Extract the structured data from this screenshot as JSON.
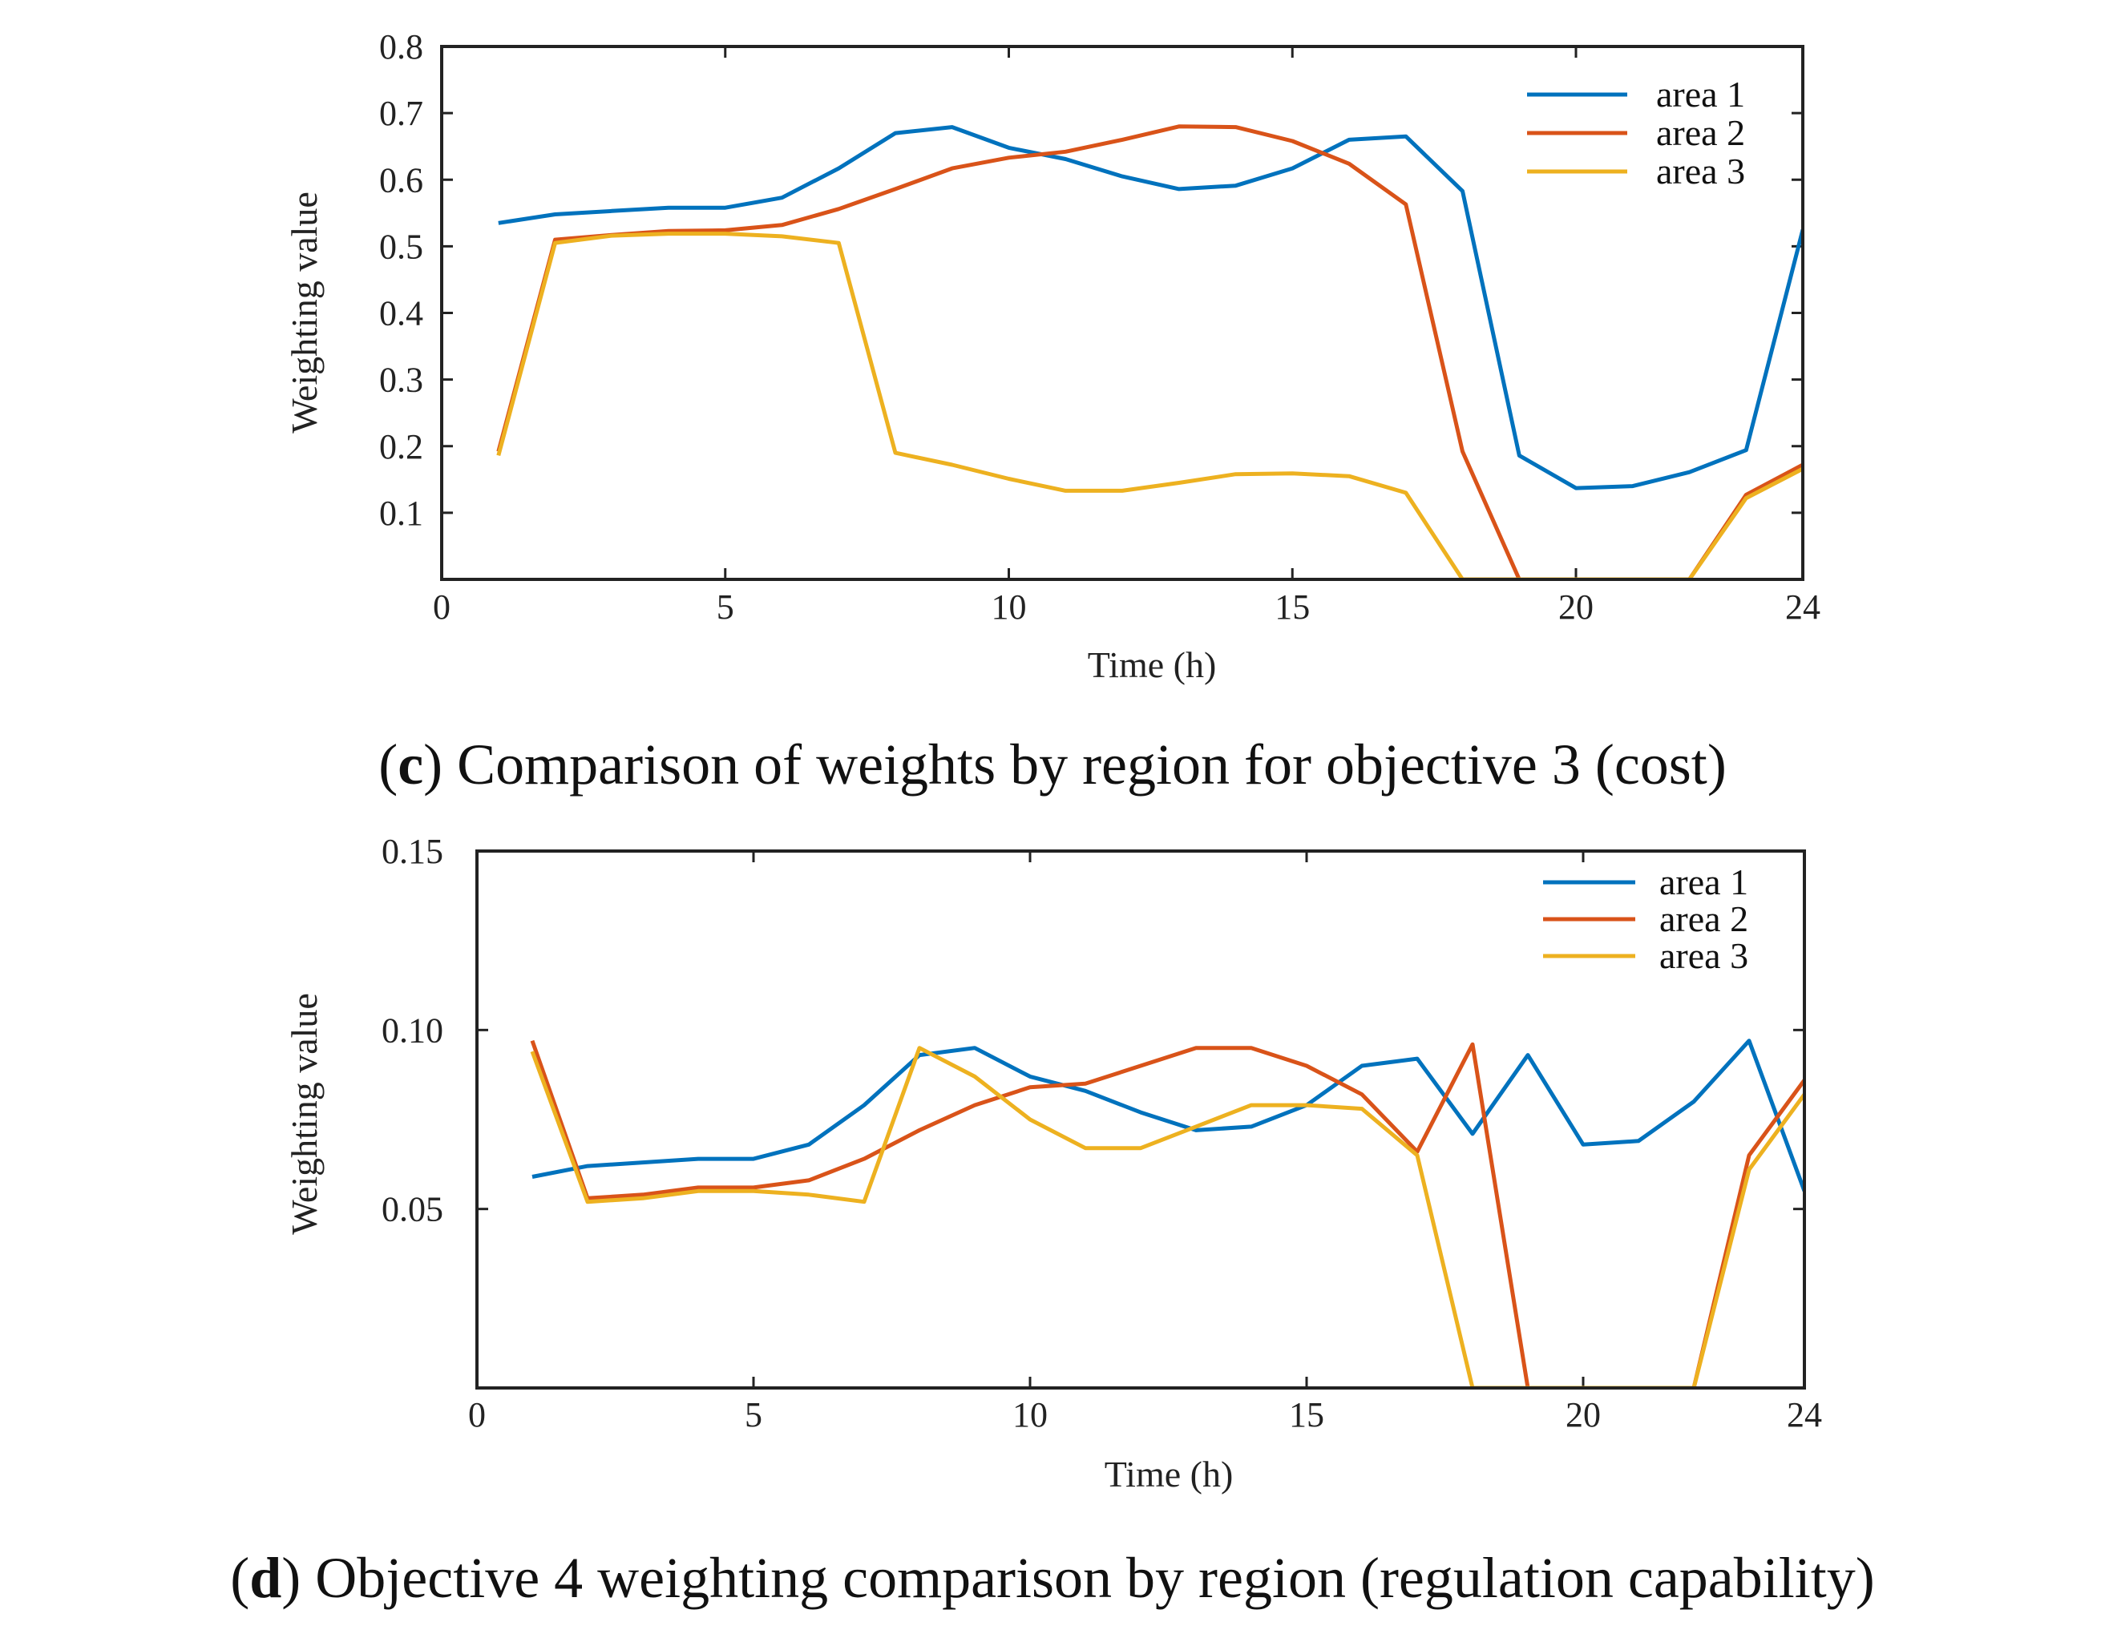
{
  "chart_data": [
    {
      "type": "line",
      "title": "",
      "caption_letter": "c",
      "caption_text": "Comparison of weights by region for objective 3 (cost)",
      "xlabel": "Time (h)",
      "ylabel": "Weighting value",
      "xlim": [
        0,
        24
      ],
      "ylim": [
        0,
        0.8
      ],
      "xticks": [
        0,
        5,
        10,
        15,
        20,
        24
      ],
      "xtick_labels": [
        "0",
        "5",
        "10",
        "15",
        "20",
        "24"
      ],
      "yticks": [
        0.1,
        0.2,
        0.3,
        0.4,
        0.5,
        0.6,
        0.7,
        0.8
      ],
      "ytick_labels": [
        "0.1",
        "0.2",
        "0.3",
        "0.4",
        "0.5",
        "0.6",
        "0.7",
        "0.8"
      ],
      "grid": false,
      "legend_position": "top-right",
      "x": [
        1,
        2,
        3,
        4,
        5,
        6,
        7,
        8,
        9,
        10,
        11,
        12,
        13,
        14,
        15,
        16,
        17,
        18,
        19,
        20,
        21,
        22,
        23,
        24
      ],
      "series": [
        {
          "name": "area 1",
          "color": "#0072BD",
          "values": [
            0.535,
            0.548,
            0.553,
            0.558,
            0.558,
            0.573,
            0.617,
            0.67,
            0.679,
            0.648,
            0.631,
            0.605,
            0.586,
            0.591,
            0.617,
            0.66,
            0.665,
            0.583,
            0.186,
            0.137,
            0.14,
            0.161,
            0.194,
            0.525
          ]
        },
        {
          "name": "area 2",
          "color": "#D95319",
          "values": [
            0.192,
            0.51,
            0.517,
            0.523,
            0.524,
            0.532,
            0.556,
            0.586,
            0.617,
            0.633,
            0.642,
            0.66,
            0.68,
            0.679,
            0.658,
            0.624,
            0.563,
            0.192,
            0.0,
            0.0,
            0.0,
            0.0,
            0.127,
            0.172
          ]
        },
        {
          "name": "area 3",
          "color": "#EDB120",
          "values": [
            0.186,
            0.505,
            0.516,
            0.519,
            0.519,
            0.515,
            0.505,
            0.19,
            0.172,
            0.151,
            0.133,
            0.133,
            0.145,
            0.158,
            0.159,
            0.155,
            0.13,
            0.0,
            0.0,
            0.0,
            0.0,
            0.0,
            0.122,
            0.166
          ]
        }
      ]
    },
    {
      "type": "line",
      "title": "",
      "caption_letter": "d",
      "caption_text": "Objective 4 weighting comparison by region (regulation capability)",
      "xlabel": "Time (h)",
      "ylabel": "Weighting value",
      "xlim": [
        0,
        24
      ],
      "ylim": [
        0,
        0.15
      ],
      "xticks": [
        0,
        5,
        10,
        15,
        20,
        24
      ],
      "xtick_labels": [
        "0",
        "5",
        "10",
        "15",
        "20",
        "24"
      ],
      "yticks": [
        0.05,
        0.1,
        0.15
      ],
      "ytick_labels": [
        "0.05",
        "0.10",
        "0.15"
      ],
      "grid": false,
      "legend_position": "top-right",
      "x": [
        1,
        2,
        3,
        4,
        5,
        6,
        7,
        8,
        9,
        10,
        11,
        12,
        13,
        14,
        15,
        16,
        17,
        18,
        19,
        20,
        21,
        22,
        23,
        24
      ],
      "series": [
        {
          "name": "area 1",
          "color": "#0072BD",
          "values": [
            0.059,
            0.062,
            0.063,
            0.064,
            0.064,
            0.068,
            0.079,
            0.093,
            0.095,
            0.087,
            0.083,
            0.077,
            0.072,
            0.073,
            0.079,
            0.09,
            0.092,
            0.071,
            0.093,
            0.068,
            0.069,
            0.08,
            0.097,
            0.055
          ]
        },
        {
          "name": "area 2",
          "color": "#D95319",
          "values": [
            0.097,
            0.053,
            0.054,
            0.056,
            0.056,
            0.058,
            0.064,
            0.072,
            0.079,
            0.084,
            0.085,
            0.09,
            0.095,
            0.095,
            0.09,
            0.082,
            0.066,
            0.096,
            0.0,
            0.0,
            0.0,
            0.0,
            0.065,
            0.086
          ]
        },
        {
          "name": "area 3",
          "color": "#EDB120",
          "values": [
            0.094,
            0.052,
            0.053,
            0.055,
            0.055,
            0.054,
            0.052,
            0.095,
            0.087,
            0.075,
            0.067,
            0.067,
            0.073,
            0.079,
            0.079,
            0.078,
            0.065,
            0.0,
            0.0,
            0.0,
            0.0,
            0.0,
            0.061,
            0.082
          ]
        }
      ]
    }
  ]
}
